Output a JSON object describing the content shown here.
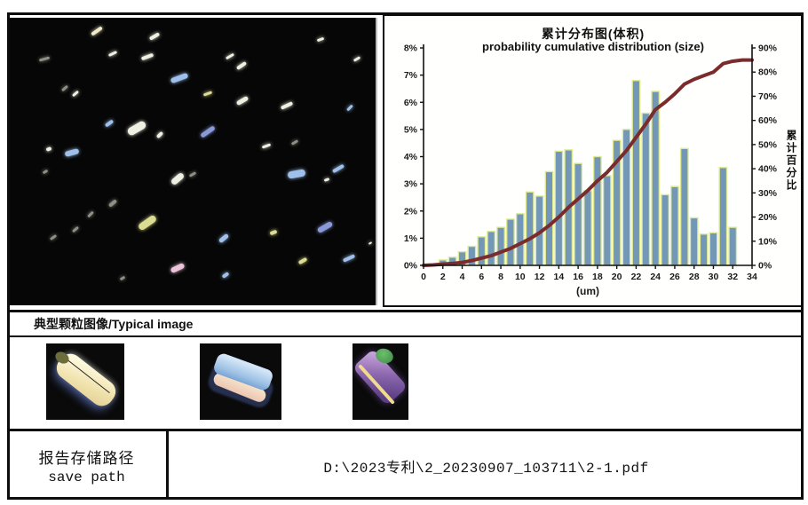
{
  "sections": {
    "typical_image_label": "典型颗粒图像/Typical image"
  },
  "save_path": {
    "label_zh": "报告存储路径",
    "label_en": "save path",
    "value": "D:\\2023专利\\2_20230907_103711\\2-1.pdf"
  },
  "chart_data": {
    "type": "bar",
    "title": "累计分布图(体积)",
    "subtitle": "probability cumulative distribution (size)",
    "xlabel": "(um)",
    "ylabel_right": "累计百分比",
    "legend_position": "none",
    "grid": false,
    "x_tick_labels": [
      0,
      2,
      4,
      6,
      8,
      10,
      12,
      14,
      16,
      18,
      20,
      22,
      24,
      26,
      28,
      30,
      32,
      34
    ],
    "left_axis": {
      "min": 0,
      "max": 8,
      "step": 1,
      "format": "percent"
    },
    "right_axis": {
      "min": 0,
      "max": 90,
      "step": 10,
      "format": "percent"
    },
    "bars": {
      "axis": "left",
      "x": [
        2,
        3,
        4,
        5,
        6,
        7,
        8,
        9,
        10,
        11,
        12,
        13,
        14,
        15,
        16,
        17,
        18,
        19,
        20,
        21,
        22,
        23,
        24,
        25,
        26,
        27,
        28,
        29,
        30,
        31,
        32
      ],
      "values": [
        0.2,
        0.3,
        0.5,
        0.7,
        1.05,
        1.25,
        1.4,
        1.7,
        1.9,
        2.7,
        2.55,
        3.45,
        4.2,
        4.25,
        3.75,
        2.75,
        4.0,
        3.3,
        4.6,
        5.0,
        6.8,
        5.6,
        6.4,
        2.6,
        2.9,
        4.3,
        1.75,
        1.15,
        1.2,
        3.6,
        1.4
      ]
    },
    "cumulative_line": {
      "axis": "right",
      "x": [
        0,
        1,
        2,
        3,
        4,
        5,
        6,
        7,
        8,
        9,
        10,
        11,
        12,
        13,
        14,
        15,
        16,
        17,
        18,
        19,
        20,
        21,
        22,
        23,
        24,
        25,
        26,
        27,
        28,
        29,
        30,
        31,
        32,
        33,
        34
      ],
      "values": [
        0,
        0.2,
        0.5,
        0.8,
        1.2,
        2,
        3,
        4,
        5.5,
        7,
        9,
        11,
        13.5,
        16.5,
        20,
        24,
        27.5,
        31,
        35,
        38.5,
        43,
        47.5,
        53,
        58.5,
        64.5,
        67.5,
        71,
        75,
        77,
        78.5,
        80,
        83.5,
        84.5,
        85,
        85
      ]
    },
    "colors": {
      "bar_fill": "#7397b6",
      "bar_edge": "#dfe993",
      "line": "#7b2b2b",
      "axis": "#111111"
    }
  },
  "microscopy": {
    "palette": {
      "w": "#eef0e2",
      "b": "#9fc0ea",
      "db": "#8a9ad8",
      "y": "#dcdc92",
      "c": "#f2e9c8",
      "p": "#ecc4da",
      "g": "#8f8f85"
    },
    "particles": [
      [
        22,
        4,
        14,
        4,
        -35,
        "c"
      ],
      [
        38,
        6,
        12,
        4,
        -30,
        "w"
      ],
      [
        8,
        14,
        12,
        3,
        -15,
        "g"
      ],
      [
        27,
        12,
        10,
        3,
        -25,
        "w"
      ],
      [
        36,
        13,
        14,
        4,
        -20,
        "w"
      ],
      [
        44,
        20,
        20,
        6,
        -20,
        "b"
      ],
      [
        59,
        13,
        10,
        3,
        -30,
        "w"
      ],
      [
        62,
        16,
        12,
        4,
        -35,
        "w"
      ],
      [
        84,
        7,
        8,
        3,
        -20,
        "w"
      ],
      [
        94,
        14,
        8,
        3,
        -30,
        "w"
      ],
      [
        14,
        24,
        8,
        3,
        -40,
        "g"
      ],
      [
        17,
        26,
        8,
        3,
        -40,
        "w"
      ],
      [
        53,
        26,
        10,
        3,
        -20,
        "y"
      ],
      [
        62,
        28,
        14,
        5,
        -30,
        "w"
      ],
      [
        74,
        30,
        14,
        4,
        -25,
        "w"
      ],
      [
        92,
        31,
        8,
        3,
        -45,
        "b"
      ],
      [
        26,
        36,
        10,
        4,
        -35,
        "b"
      ],
      [
        32,
        37,
        22,
        9,
        -30,
        "w"
      ],
      [
        40,
        40,
        8,
        4,
        -45,
        "w"
      ],
      [
        52,
        39,
        18,
        5,
        -35,
        "db"
      ],
      [
        69,
        44,
        10,
        3,
        -20,
        "w"
      ],
      [
        77,
        43,
        8,
        3,
        -30,
        "g"
      ],
      [
        10,
        45,
        6,
        4,
        -20,
        "w"
      ],
      [
        15,
        46,
        16,
        6,
        -15,
        "b"
      ],
      [
        9,
        53,
        6,
        3,
        -30,
        "g"
      ],
      [
        44,
        55,
        16,
        7,
        -40,
        "w"
      ],
      [
        49,
        54,
        8,
        3,
        -30,
        "g"
      ],
      [
        76,
        53,
        20,
        8,
        -10,
        "b"
      ],
      [
        88,
        52,
        14,
        4,
        -30,
        "b"
      ],
      [
        86,
        56,
        6,
        3,
        -20,
        "w"
      ],
      [
        27,
        64,
        10,
        4,
        -40,
        "g"
      ],
      [
        21,
        68,
        8,
        3,
        -45,
        "g"
      ],
      [
        35,
        70,
        22,
        8,
        -35,
        "y"
      ],
      [
        17,
        73,
        8,
        3,
        -40,
        "g"
      ],
      [
        11,
        76,
        8,
        3,
        -35,
        "g"
      ],
      [
        57,
        76,
        12,
        5,
        -40,
        "b"
      ],
      [
        71,
        74,
        8,
        4,
        -20,
        "y"
      ],
      [
        84,
        72,
        18,
        6,
        -30,
        "db"
      ],
      [
        44,
        86,
        16,
        6,
        -25,
        "p"
      ],
      [
        58,
        89,
        8,
        4,
        -35,
        "b"
      ],
      [
        79,
        84,
        10,
        4,
        -30,
        "y"
      ],
      [
        91,
        83,
        14,
        4,
        -25,
        "b"
      ],
      [
        98,
        78,
        4,
        2,
        -30,
        "w"
      ],
      [
        30,
        90,
        6,
        3,
        -30,
        "g"
      ]
    ]
  }
}
